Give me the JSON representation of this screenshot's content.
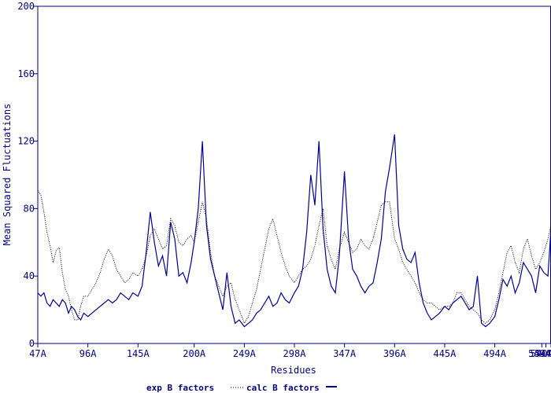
{
  "chart_data": {
    "type": "line",
    "title": "",
    "xlabel": "Residues",
    "ylabel": "Mean Squared Fluctuations",
    "ylim": [
      0,
      200
    ],
    "yticks": [
      0,
      40,
      80,
      120,
      160,
      200
    ],
    "xticks": [
      {
        "label": "47A",
        "residue": 47
      },
      {
        "label": "96A",
        "residue": 96
      },
      {
        "label": "145A",
        "residue": 145
      },
      {
        "label": "200A",
        "residue": 200
      },
      {
        "label": "249A",
        "residue": 249
      },
      {
        "label": "298A",
        "residue": 298
      },
      {
        "label": "347A",
        "residue": 347
      },
      {
        "label": "396A",
        "residue": 396
      },
      {
        "label": "445A",
        "residue": 445
      },
      {
        "label": "494A",
        "residue": 494
      },
      {
        "label": "540A",
        "residue": 540
      },
      {
        "label": "544A",
        "residue": 544
      },
      {
        "label": "549A",
        "residue": 549
      }
    ],
    "xlim": [
      47,
      549
    ],
    "grid": false,
    "legend_position": "bottom-center",
    "colors": {
      "axis": "#000080",
      "exp": "#000000",
      "calc": "#000099"
    },
    "series": [
      {
        "name": "exp B factors",
        "style": "dotted",
        "color": "#000000",
        "x": [
          47,
          50,
          53,
          56,
          59,
          62,
          65,
          68,
          71,
          74,
          77,
          80,
          83,
          86,
          89,
          92,
          96,
          100,
          104,
          108,
          112,
          116,
          120,
          124,
          128,
          132,
          136,
          140,
          145,
          149,
          153,
          157,
          161,
          165,
          169,
          173,
          177,
          181,
          185,
          189,
          193,
          197,
          200,
          204,
          208,
          212,
          216,
          220,
          224,
          228,
          232,
          236,
          240,
          244,
          249,
          253,
          257,
          261,
          265,
          269,
          273,
          277,
          281,
          285,
          289,
          293,
          298,
          302,
          306,
          310,
          314,
          318,
          322,
          326,
          330,
          334,
          338,
          342,
          347,
          351,
          355,
          359,
          363,
          367,
          371,
          375,
          379,
          383,
          387,
          391,
          396,
          400,
          404,
          408,
          412,
          416,
          420,
          424,
          428,
          432,
          436,
          440,
          445,
          449,
          453,
          457,
          461,
          465,
          469,
          473,
          477,
          481,
          485,
          489,
          494,
          498,
          502,
          506,
          510,
          514,
          518,
          522,
          526,
          530,
          534,
          538,
          542,
          546,
          549
        ],
        "values": [
          91,
          88,
          78,
          66,
          58,
          48,
          55,
          57,
          42,
          32,
          28,
          20,
          14,
          14,
          22,
          28,
          28,
          32,
          36,
          42,
          50,
          56,
          52,
          44,
          40,
          36,
          38,
          42,
          40,
          44,
          52,
          64,
          68,
          62,
          56,
          58,
          74,
          70,
          60,
          58,
          62,
          64,
          60,
          72,
          84,
          74,
          54,
          40,
          34,
          28,
          34,
          36,
          26,
          20,
          12,
          16,
          24,
          32,
          44,
          56,
          68,
          74,
          64,
          54,
          46,
          40,
          36,
          40,
          44,
          46,
          50,
          58,
          70,
          80,
          58,
          50,
          44,
          56,
          66,
          60,
          54,
          56,
          62,
          58,
          56,
          62,
          72,
          82,
          84,
          84,
          62,
          56,
          48,
          44,
          40,
          36,
          30,
          26,
          24,
          24,
          22,
          20,
          22,
          22,
          24,
          30,
          30,
          26,
          22,
          20,
          18,
          14,
          12,
          14,
          20,
          30,
          42,
          54,
          58,
          48,
          42,
          56,
          62,
          52,
          44,
          48,
          54,
          62,
          70
        ]
      },
      {
        "name": "calc B factors",
        "style": "solid",
        "color": "#000099",
        "x": [
          47,
          50,
          53,
          56,
          59,
          62,
          65,
          68,
          71,
          74,
          77,
          80,
          83,
          86,
          89,
          92,
          96,
          100,
          104,
          108,
          112,
          116,
          120,
          124,
          128,
          132,
          136,
          140,
          145,
          149,
          153,
          157,
          161,
          165,
          169,
          173,
          177,
          181,
          185,
          189,
          193,
          197,
          200,
          204,
          208,
          212,
          216,
          220,
          224,
          228,
          232,
          236,
          240,
          244,
          249,
          253,
          257,
          261,
          265,
          269,
          273,
          277,
          281,
          285,
          289,
          293,
          298,
          302,
          306,
          310,
          314,
          318,
          322,
          326,
          330,
          334,
          338,
          342,
          347,
          351,
          355,
          359,
          363,
          367,
          371,
          375,
          379,
          383,
          387,
          391,
          396,
          400,
          404,
          408,
          412,
          416,
          420,
          424,
          428,
          432,
          436,
          440,
          445,
          449,
          453,
          457,
          461,
          465,
          469,
          473,
          477,
          481,
          485,
          489,
          494,
          498,
          502,
          506,
          510,
          514,
          518,
          522,
          526,
          530,
          534,
          538,
          542,
          546,
          549
        ],
        "values": [
          30,
          28,
          30,
          24,
          22,
          26,
          24,
          22,
          26,
          24,
          18,
          22,
          20,
          16,
          14,
          18,
          16,
          18,
          20,
          22,
          24,
          26,
          24,
          26,
          30,
          28,
          26,
          30,
          28,
          34,
          54,
          78,
          60,
          46,
          52,
          40,
          72,
          62,
          40,
          42,
          36,
          48,
          60,
          80,
          120,
          70,
          50,
          40,
          30,
          20,
          42,
          22,
          12,
          14,
          10,
          12,
          14,
          18,
          20,
          24,
          28,
          22,
          24,
          30,
          26,
          24,
          30,
          34,
          44,
          66,
          100,
          82,
          120,
          68,
          44,
          34,
          30,
          52,
          102,
          62,
          44,
          40,
          34,
          30,
          34,
          36,
          48,
          62,
          90,
          104,
          124,
          70,
          56,
          50,
          48,
          54,
          36,
          24,
          18,
          14,
          16,
          18,
          22,
          20,
          24,
          26,
          28,
          24,
          20,
          22,
          40,
          12,
          10,
          12,
          16,
          26,
          38,
          34,
          40,
          30,
          36,
          48,
          44,
          40,
          30,
          46,
          42,
          40,
          68
        ]
      }
    ]
  }
}
